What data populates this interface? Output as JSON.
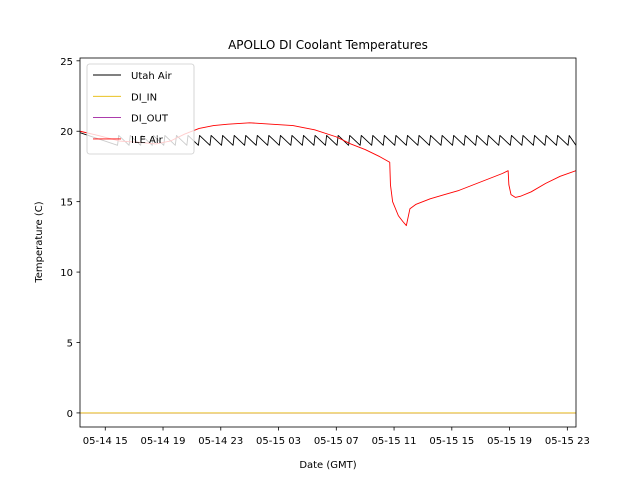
{
  "chart_data": {
    "type": "line",
    "title": "APOLLO DI Coolant Temperatures",
    "xlabel": "Date (GMT)",
    "ylabel": "Temperature (C)",
    "xlim": [
      13.25,
      47.6
    ],
    "ylim": [
      -1.0,
      25.2
    ],
    "x_unit": "hours since 05-14 00:00 GMT",
    "x_ticks": [
      {
        "value": 15,
        "label": "05-14 15"
      },
      {
        "value": 19,
        "label": "05-14 19"
      },
      {
        "value": 23,
        "label": "05-14 23"
      },
      {
        "value": 27,
        "label": "05-15 03"
      },
      {
        "value": 31,
        "label": "05-15 07"
      },
      {
        "value": 35,
        "label": "05-15 11"
      },
      {
        "value": 39,
        "label": "05-15 15"
      },
      {
        "value": 43,
        "label": "05-15 19"
      },
      {
        "value": 47,
        "label": "05-15 23"
      }
    ],
    "y_ticks": [
      {
        "value": 0,
        "label": "0"
      },
      {
        "value": 5,
        "label": "5"
      },
      {
        "value": 10,
        "label": "10"
      },
      {
        "value": 15,
        "label": "15"
      },
      {
        "value": 20,
        "label": "20"
      },
      {
        "value": 25,
        "label": "25"
      }
    ],
    "legend_position": "top-left",
    "series": [
      {
        "name": "Utah Air",
        "color": "#000000",
        "pattern": "sawtooth",
        "x_start": 13.25,
        "x_end": 47.6,
        "initial_value": 19.9,
        "cycle_hours": 0.72,
        "peak": 19.7,
        "trough": 19.0
      },
      {
        "name": "DI_IN",
        "color": "#e5b800",
        "x": [
          13.25,
          47.6
        ],
        "y": [
          0,
          0
        ]
      },
      {
        "name": "DI_OUT",
        "color": "#a020a0",
        "x": [
          13.25,
          47.6
        ],
        "y": [
          0,
          0
        ]
      },
      {
        "name": "ILE Air",
        "color": "#ff0000",
        "x": [
          13.25,
          14.5,
          16,
          17.5,
          18.5,
          19.5,
          20.5,
          21.5,
          22.5,
          23.5,
          25,
          26.5,
          28,
          29.5,
          31,
          32,
          33,
          34,
          34.7,
          34.75,
          34.9,
          35.3,
          35.6,
          35.85,
          36.1,
          36.5,
          37.5,
          38.5,
          39.5,
          40.5,
          41.5,
          42.5,
          42.9,
          42.95,
          43.1,
          43.4,
          43.8,
          44.5,
          45.5,
          46.5,
          47.6
        ],
        "y": [
          20.0,
          19.7,
          19.3,
          19.2,
          19.1,
          19.3,
          19.8,
          20.2,
          20.4,
          20.5,
          20.6,
          20.5,
          20.4,
          20.1,
          19.6,
          19.1,
          18.7,
          18.2,
          17.8,
          16.2,
          15.0,
          14.0,
          13.6,
          13.3,
          14.5,
          14.8,
          15.2,
          15.5,
          15.8,
          16.2,
          16.6,
          17.0,
          17.2,
          16.2,
          15.5,
          15.3,
          15.4,
          15.7,
          16.3,
          16.8,
          17.2
        ]
      }
    ]
  }
}
